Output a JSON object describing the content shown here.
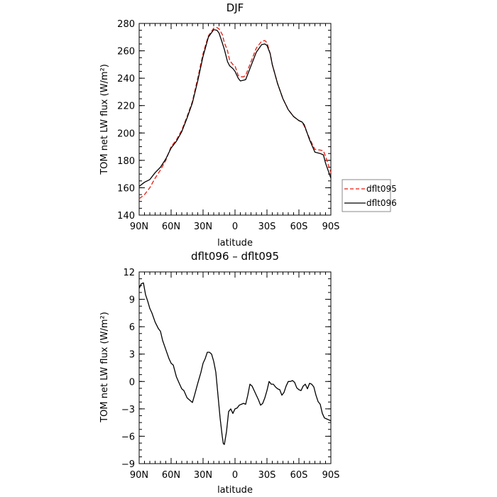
{
  "chart_data": [
    {
      "type": "line",
      "title": "DJF",
      "xlabel": "latitude",
      "ylabel": "TOM net LW flux (W/m²)",
      "xlim": [
        -90,
        90
      ],
      "ylim": [
        140,
        280
      ],
      "xticks": [
        -90,
        -60,
        -30,
        0,
        30,
        60,
        90
      ],
      "xtick_labels": [
        "90N",
        "60N",
        "30N",
        "0",
        "30S",
        "60S",
        "90S"
      ],
      "yticks": [
        140,
        160,
        180,
        200,
        220,
        240,
        260,
        280
      ],
      "ytick_labels": [
        "140",
        "160",
        "180",
        "200",
        "220",
        "240",
        "260",
        "280"
      ],
      "legend": "outside-right",
      "series": [
        {
          "name": "dflt095",
          "color": "#e8190e",
          "dash": "dashed",
          "x": [
            -90,
            -85,
            -80,
            -75,
            -70,
            -65,
            -60,
            -55,
            -50,
            -45,
            -40,
            -35,
            -30,
            -25,
            -20,
            -17,
            -15,
            -12,
            -10,
            -7,
            -5,
            -2,
            0,
            3,
            5,
            8,
            10,
            15,
            20,
            25,
            28,
            30,
            33,
            35,
            40,
            45,
            50,
            55,
            60,
            63,
            65,
            70,
            75,
            80,
            83,
            85,
            90
          ],
          "y": [
            152,
            155,
            160,
            167,
            173,
            180,
            190,
            195,
            202,
            212,
            223,
            240,
            258,
            271,
            276.5,
            277,
            276,
            272,
            266,
            260,
            253,
            250,
            249,
            242,
            241,
            241,
            242,
            252,
            262,
            267,
            267.5,
            266,
            258,
            250,
            236,
            225,
            217,
            212,
            209,
            208,
            205,
            196,
            188,
            187.5,
            187,
            183,
            171
          ]
        },
        {
          "name": "dflt096",
          "color": "#000000",
          "dash": "solid",
          "x": [
            -90,
            -85,
            -80,
            -75,
            -70,
            -65,
            -60,
            -55,
            -50,
            -45,
            -40,
            -35,
            -30,
            -25,
            -20,
            -17,
            -15,
            -12,
            -10,
            -7,
            -5,
            -2,
            0,
            3,
            5,
            8,
            10,
            15,
            20,
            25,
            28,
            30,
            33,
            35,
            40,
            45,
            50,
            55,
            60,
            63,
            65,
            70,
            75,
            80,
            83,
            85,
            90
          ],
          "y": [
            161,
            164,
            166,
            171,
            175,
            181,
            189,
            194,
            201,
            211,
            222,
            238,
            256,
            270,
            275.5,
            275,
            273,
            266,
            261,
            252,
            249,
            247,
            245,
            240,
            238,
            238.5,
            239,
            249,
            259,
            264.5,
            265,
            264,
            258,
            250,
            236,
            225,
            217,
            212,
            209,
            208,
            206,
            195,
            186,
            185,
            184,
            178,
            167
          ]
        }
      ]
    },
    {
      "type": "line",
      "title": "dflt096 – dflt095",
      "xlabel": "latitude",
      "ylabel": "TOM net LW flux (W/m²)",
      "xlim": [
        -90,
        90
      ],
      "ylim": [
        -9,
        12
      ],
      "xticks": [
        -90,
        -60,
        -30,
        0,
        30,
        60,
        90
      ],
      "xtick_labels": [
        "90N",
        "60N",
        "30N",
        "0",
        "30S",
        "60S",
        "90S"
      ],
      "yticks": [
        -9,
        -6,
        -3,
        0,
        3,
        6,
        9,
        12
      ],
      "ytick_labels": [
        "−9",
        "−6",
        "−3",
        "0",
        "3",
        "6",
        "9",
        "12"
      ],
      "series": [
        {
          "color": "#000000",
          "dash": "solid",
          "x": [
            -90,
            -88,
            -86,
            -84,
            -82,
            -80,
            -78,
            -75,
            -72,
            -70,
            -68,
            -65,
            -62,
            -60,
            -58,
            -55,
            -52,
            -50,
            -48,
            -45,
            -42,
            -40,
            -38,
            -35,
            -32,
            -30,
            -28,
            -26,
            -24,
            -22,
            -20,
            -18,
            -16,
            -14,
            -12,
            -11,
            -10,
            -8,
            -6,
            -4,
            -2,
            0,
            2,
            4,
            6,
            8,
            10,
            12,
            14,
            16,
            18,
            20,
            22,
            24,
            26,
            28,
            30,
            32,
            34,
            36,
            38,
            40,
            42,
            44,
            46,
            48,
            50,
            52,
            54,
            56,
            58,
            60,
            62,
            64,
            66,
            68,
            70,
            72,
            74,
            76,
            78,
            80,
            82,
            84,
            86,
            88,
            90
          ],
          "y": [
            10.2,
            10.7,
            10.8,
            9.5,
            8.8,
            8.0,
            7.5,
            6.5,
            5.8,
            5.5,
            4.5,
            3.5,
            2.5,
            2.0,
            1.8,
            0.5,
            -0.3,
            -0.8,
            -1.0,
            -1.8,
            -2.1,
            -2.3,
            -1.5,
            -0.2,
            1.0,
            2.0,
            2.5,
            3.2,
            3.2,
            3.0,
            2.2,
            1.0,
            -1.5,
            -4.0,
            -6.0,
            -6.8,
            -6.9,
            -5.5,
            -3.3,
            -3.0,
            -3.5,
            -3.0,
            -2.9,
            -2.6,
            -2.5,
            -2.4,
            -2.5,
            -1.5,
            -0.3,
            -0.5,
            -1.0,
            -1.5,
            -2.0,
            -2.6,
            -2.4,
            -1.8,
            -1.0,
            0.0,
            -0.3,
            -0.3,
            -0.6,
            -0.8,
            -0.9,
            -1.5,
            -1.2,
            -0.5,
            0.0,
            0.0,
            0.1,
            -0.1,
            -0.7,
            -0.9,
            -1.0,
            -0.5,
            -0.3,
            -0.8,
            -0.2,
            -0.3,
            -0.6,
            -1.5,
            -2.2,
            -2.5,
            -3.5,
            -4.0,
            -4.1,
            -4.2,
            -4.3
          ]
        }
      ]
    }
  ]
}
